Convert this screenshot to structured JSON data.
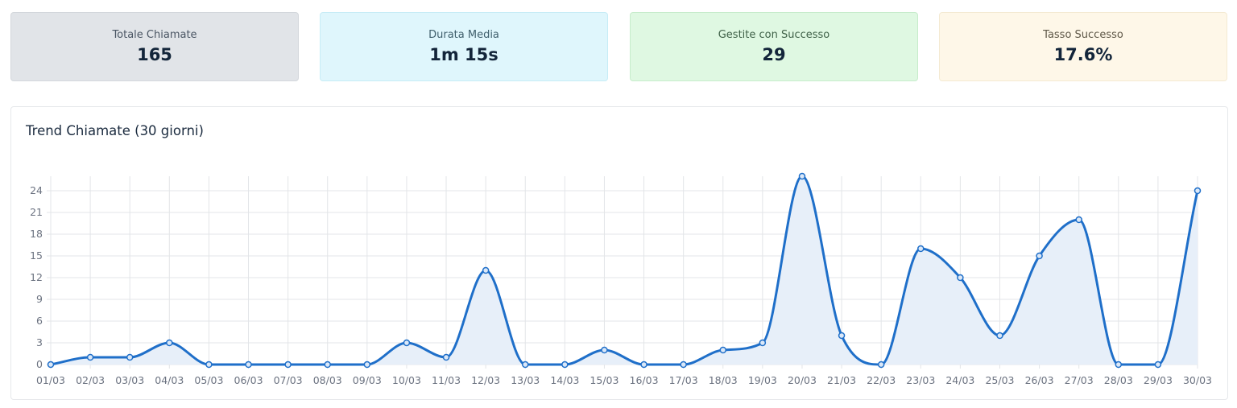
{
  "stats": [
    {
      "label": "Totale Chiamate",
      "value": "165"
    },
    {
      "label": "Durata Media",
      "value": "1m 15s"
    },
    {
      "label": "Gestite con Successo",
      "value": "29"
    },
    {
      "label": "Tasso Successo",
      "value": "17.6%"
    }
  ],
  "panel": {
    "title": "Trend Chiamate (30 giorni)"
  },
  "colors": {
    "line": "#1f6fc9",
    "fill": "#e7eff9",
    "grid": "#e3e5e8",
    "tick": "#6b7280"
  },
  "chart_data": {
    "type": "area",
    "title": "Trend Chiamate (30 giorni)",
    "x": [
      "01/03",
      "02/03",
      "03/03",
      "04/03",
      "05/03",
      "06/03",
      "07/03",
      "08/03",
      "09/03",
      "10/03",
      "11/03",
      "12/03",
      "13/03",
      "14/03",
      "15/03",
      "16/03",
      "17/03",
      "18/03",
      "19/03",
      "20/03",
      "21/03",
      "22/03",
      "23/03",
      "24/03",
      "25/03",
      "26/03",
      "27/03",
      "28/03",
      "29/03",
      "30/03"
    ],
    "series": [
      {
        "values": [
          0,
          1,
          1,
          3,
          0,
          0,
          0,
          0,
          0,
          3,
          1,
          13,
          0,
          0,
          2,
          0,
          0,
          2,
          3,
          26,
          4,
          0,
          16,
          12,
          4,
          15,
          20,
          0,
          0,
          24
        ]
      }
    ],
    "yticks": [
      0,
      3,
      6,
      9,
      12,
      15,
      18,
      21,
      24
    ],
    "ylim": [
      0,
      26
    ],
    "grid": true,
    "legend": "none",
    "smooth": true
  }
}
